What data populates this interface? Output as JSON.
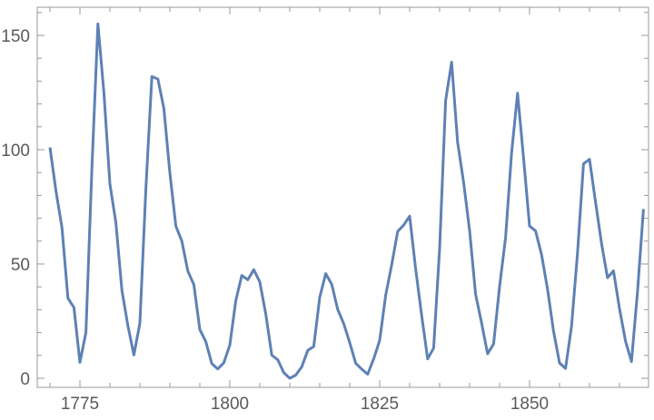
{
  "chart_data": {
    "type": "line",
    "title": "",
    "xlabel": "",
    "ylabel": "",
    "xlim": [
      1768,
      1870
    ],
    "ylim": [
      -4,
      162
    ],
    "x_ticks": [
      1775,
      1800,
      1825,
      1850
    ],
    "y_ticks": [
      0,
      50,
      100,
      150
    ],
    "grid": false,
    "color": "#5E81B5",
    "x": [
      1770,
      1771,
      1772,
      1773,
      1774,
      1775,
      1776,
      1777,
      1778,
      1779,
      1780,
      1781,
      1782,
      1783,
      1784,
      1785,
      1786,
      1787,
      1788,
      1789,
      1790,
      1791,
      1792,
      1793,
      1794,
      1795,
      1796,
      1797,
      1798,
      1799,
      1800,
      1801,
      1802,
      1803,
      1804,
      1805,
      1806,
      1807,
      1808,
      1809,
      1810,
      1811,
      1812,
      1813,
      1814,
      1815,
      1816,
      1817,
      1818,
      1819,
      1820,
      1821,
      1822,
      1823,
      1824,
      1825,
      1826,
      1827,
      1828,
      1829,
      1830,
      1831,
      1832,
      1833,
      1834,
      1835,
      1836,
      1837,
      1838,
      1839,
      1840,
      1841,
      1842,
      1843,
      1844,
      1845,
      1846,
      1847,
      1848,
      1849,
      1850,
      1851,
      1852,
      1853,
      1854,
      1855,
      1856,
      1857,
      1858,
      1859,
      1860,
      1861,
      1862,
      1863,
      1864,
      1865,
      1866,
      1867,
      1868,
      1869
    ],
    "values": [
      101,
      82,
      66,
      35,
      31,
      7,
      20,
      92,
      155,
      125,
      85,
      68,
      38.5,
      23,
      10.2,
      24.1,
      82.9,
      132,
      130.9,
      118.1,
      89.9,
      66.6,
      60,
      46.9,
      41,
      21.3,
      16,
      6.4,
      4.1,
      6.8,
      14.5,
      34,
      45,
      43.1,
      47.5,
      42.2,
      28.1,
      10.1,
      8.1,
      2.5,
      0,
      1.4,
      5,
      12.2,
      13.9,
      35.4,
      45.8,
      41.1,
      30.1,
      23.9,
      15.6,
      6.6,
      4,
      1.8,
      8.5,
      16.6,
      36.3,
      49.6,
      64.2,
      67,
      70.9,
      47.8,
      27.5,
      8.5,
      13.2,
      56.9,
      121.5,
      138.3,
      103.2,
      85.7,
      64.6,
      36.7,
      24.2,
      10.7,
      15,
      40.1,
      61.5,
      98.5,
      124.7,
      96.3,
      66.6,
      64.5,
      54.1,
      39,
      20.6,
      6.7,
      4.3,
      22.7,
      54.8,
      93.8,
      95.8,
      77.2,
      59.1,
      44,
      47,
      30.5,
      16.3,
      7.3,
      37.6,
      74
    ]
  }
}
